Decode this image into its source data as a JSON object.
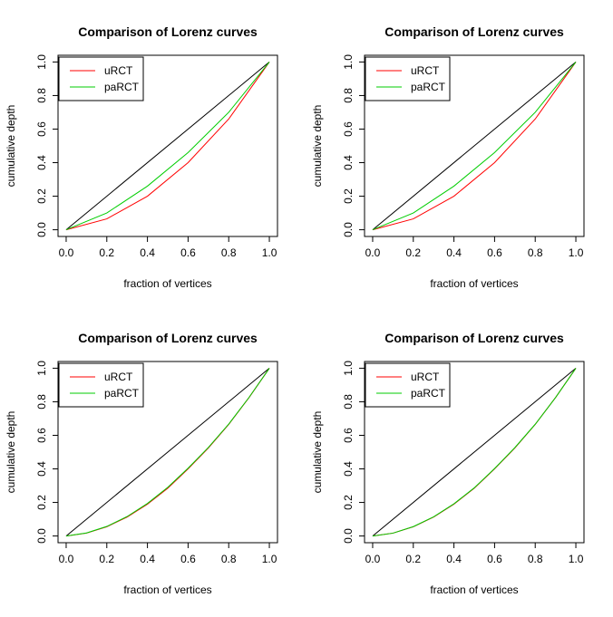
{
  "chart_data": [
    {
      "type": "line",
      "title": "Comparison of Lorenz curves",
      "xlabel": "fraction of vertices",
      "ylabel": "cumulative depth",
      "x": [
        0,
        0.2,
        0.4,
        0.6,
        0.8,
        1
      ],
      "series": [
        {
          "name": "uRCT",
          "color": "#ff0000",
          "values": [
            0,
            0.065,
            0.2,
            0.4,
            0.66,
            1
          ]
        },
        {
          "name": "paRCT",
          "color": "#00cd00",
          "values": [
            0,
            0.1,
            0.26,
            0.46,
            0.7,
            1
          ]
        }
      ],
      "reference_line": {
        "x": [
          0,
          1
        ],
        "values": [
          0,
          1
        ],
        "color": "#000000"
      },
      "xlim": [
        -0.04,
        1.04
      ],
      "ylim": [
        -0.04,
        1.04
      ],
      "xticks": [
        {
          "value": 0,
          "label": "0.0"
        },
        0.2,
        0.4,
        0.6,
        0.8,
        {
          "value": 1,
          "label": "1.0"
        }
      ],
      "yticks": [
        {
          "value": 0,
          "label": "0.0"
        },
        0.2,
        0.4,
        0.6,
        0.8,
        {
          "value": 1,
          "label": "1.0"
        }
      ],
      "legend": "top-left"
    },
    {
      "type": "line",
      "title": "Comparison of Lorenz curves",
      "xlabel": "fraction of vertices",
      "ylabel": "cumulative depth",
      "x": [
        0,
        0.2,
        0.4,
        0.6,
        0.8,
        1
      ],
      "series": [
        {
          "name": "uRCT",
          "color": "#ff0000",
          "values": [
            0,
            0.065,
            0.2,
            0.4,
            0.66,
            1
          ]
        },
        {
          "name": "paRCT",
          "color": "#00cd00",
          "values": [
            0,
            0.1,
            0.26,
            0.46,
            0.7,
            1
          ]
        }
      ],
      "reference_line": {
        "x": [
          0,
          1
        ],
        "values": [
          0,
          1
        ],
        "color": "#000000"
      },
      "xlim": [
        -0.04,
        1.04
      ],
      "ylim": [
        -0.04,
        1.04
      ],
      "xticks": [
        {
          "value": 0,
          "label": "0.0"
        },
        0.2,
        0.4,
        0.6,
        0.8,
        {
          "value": 1,
          "label": "1.0"
        }
      ],
      "yticks": [
        {
          "value": 0,
          "label": "0.0"
        },
        0.2,
        0.4,
        0.6,
        0.8,
        {
          "value": 1,
          "label": "1.0"
        }
      ],
      "legend": "top-left"
    },
    {
      "type": "line",
      "title": "Comparison of Lorenz curves",
      "xlabel": "fraction of vertices",
      "ylabel": "cumulative depth",
      "x": [
        0,
        0.1,
        0.2,
        0.3,
        0.4,
        0.5,
        0.6,
        0.7,
        0.8,
        0.9,
        1
      ],
      "series": [
        {
          "name": "uRCT",
          "color": "#ff0000",
          "values": [
            0,
            0.017,
            0.055,
            0.113,
            0.19,
            0.285,
            0.4,
            0.525,
            0.665,
            0.825,
            1
          ]
        },
        {
          "name": "paRCT",
          "color": "#00cd00",
          "values": [
            0,
            0.018,
            0.057,
            0.116,
            0.194,
            0.29,
            0.404,
            0.528,
            0.667,
            0.826,
            1
          ]
        }
      ],
      "reference_line": {
        "x": [
          0,
          1
        ],
        "values": [
          0,
          1
        ],
        "color": "#000000"
      },
      "xlim": [
        -0.04,
        1.04
      ],
      "ylim": [
        -0.04,
        1.04
      ],
      "xticks": [
        {
          "value": 0,
          "label": "0.0"
        },
        0.2,
        0.4,
        0.6,
        0.8,
        {
          "value": 1,
          "label": "1.0"
        }
      ],
      "yticks": [
        {
          "value": 0,
          "label": "0.0"
        },
        0.2,
        0.4,
        0.6,
        0.8,
        {
          "value": 1,
          "label": "1.0"
        }
      ],
      "legend": "top-left"
    },
    {
      "type": "line",
      "title": "Comparison of Lorenz curves",
      "xlabel": "fraction of vertices",
      "ylabel": "cumulative depth",
      "x": [
        0,
        0.1,
        0.2,
        0.3,
        0.4,
        0.5,
        0.6,
        0.7,
        0.8,
        0.9,
        1
      ],
      "series": [
        {
          "name": "uRCT",
          "color": "#ff0000",
          "values": [
            0,
            0.017,
            0.055,
            0.113,
            0.19,
            0.285,
            0.4,
            0.525,
            0.665,
            0.825,
            1
          ]
        },
        {
          "name": "paRCT",
          "color": "#00cd00",
          "values": [
            0,
            0.017,
            0.056,
            0.114,
            0.192,
            0.287,
            0.402,
            0.527,
            0.666,
            0.825,
            1
          ]
        }
      ],
      "reference_line": {
        "x": [
          0,
          1
        ],
        "values": [
          0,
          1
        ],
        "color": "#000000"
      },
      "xlim": [
        -0.04,
        1.04
      ],
      "ylim": [
        -0.04,
        1.04
      ],
      "xticks": [
        {
          "value": 0,
          "label": "0.0"
        },
        0.2,
        0.4,
        0.6,
        0.8,
        {
          "value": 1,
          "label": "1.0"
        }
      ],
      "yticks": [
        {
          "value": 0,
          "label": "0.0"
        },
        0.2,
        0.4,
        0.6,
        0.8,
        {
          "value": 1,
          "label": "1.0"
        }
      ],
      "legend": "top-left"
    }
  ]
}
